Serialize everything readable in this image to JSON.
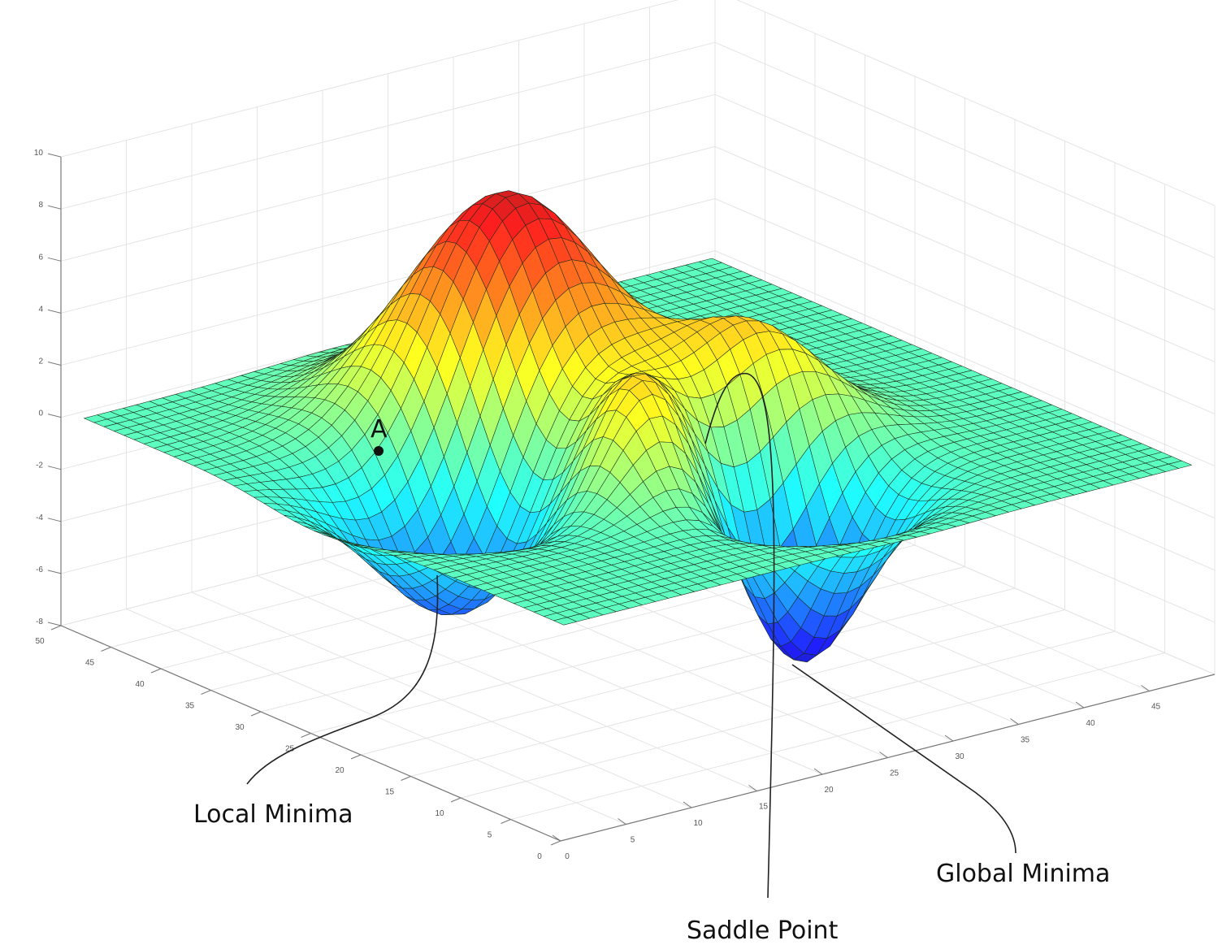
{
  "chart_data": {
    "type": "surface",
    "title": "",
    "xlabel": "",
    "ylabel": "",
    "zlabel": "",
    "xlim": [
      0,
      50
    ],
    "ylim": [
      0,
      50
    ],
    "zlim": [
      -8,
      10
    ],
    "grid": true,
    "colormap": "jet",
    "x_ticks": [
      "0",
      "5",
      "10",
      "15",
      "20",
      "25",
      "30",
      "35",
      "40",
      "45"
    ],
    "y_ticks": [
      "0",
      "5",
      "10",
      "15",
      "20",
      "25",
      "30",
      "35",
      "40",
      "45",
      "50"
    ],
    "z_ticks": [
      "-8",
      "-6",
      "-4",
      "-2",
      "0",
      "2",
      "4",
      "6",
      "8",
      "10"
    ],
    "features": [
      {
        "kind": "peak",
        "x": 21,
        "y": 33,
        "z": 9
      },
      {
        "kind": "peak",
        "x": 20,
        "y": 18,
        "z": 4.5
      },
      {
        "kind": "peak",
        "x": 31,
        "y": 21,
        "z": 4.5
      },
      {
        "kind": "local-minimum",
        "x": 12,
        "y": 26,
        "z": -6
      },
      {
        "kind": "global-minimum",
        "x": 28,
        "y": 13,
        "z": -7.5
      }
    ],
    "baseline_z": 0,
    "point": {
      "label": "A"
    },
    "annotations": {
      "local_minima": "Local Minima",
      "saddle_point": "Saddle Point",
      "global_minima": "Global Minima"
    }
  }
}
